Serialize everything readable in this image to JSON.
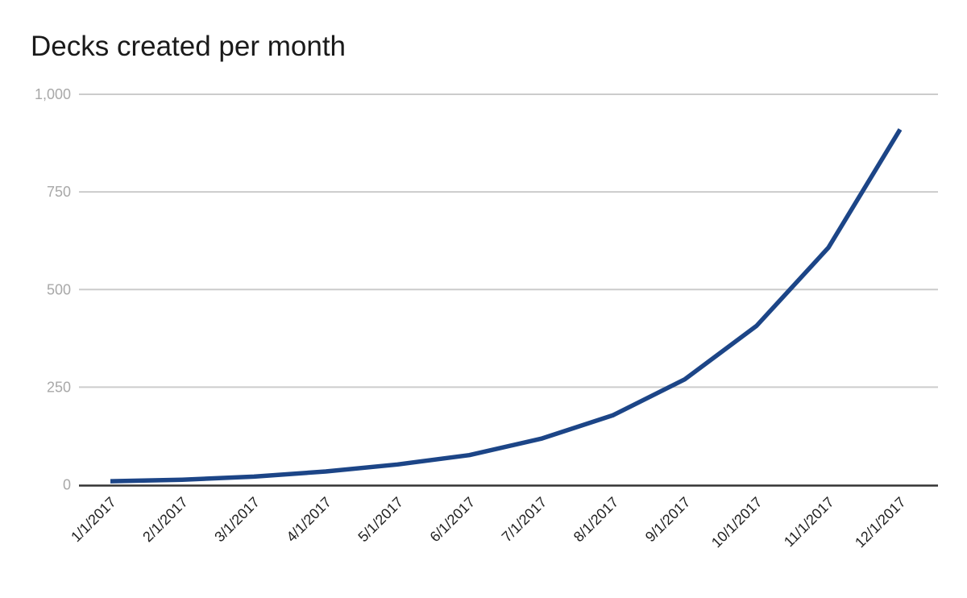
{
  "chart_data": {
    "type": "line",
    "title": "Decks created per month",
    "categories": [
      "1/1/2017",
      "2/1/2017",
      "3/1/2017",
      "4/1/2017",
      "5/1/2017",
      "6/1/2017",
      "7/1/2017",
      "8/1/2017",
      "9/1/2017",
      "10/1/2017",
      "11/1/2017",
      "12/1/2017"
    ],
    "values": [
      9,
      13,
      21,
      34,
      52,
      76,
      118,
      178,
      270,
      407,
      607,
      910
    ],
    "xlabel": "",
    "ylabel": "",
    "ylim": [
      0,
      1000
    ],
    "yticks": [
      {
        "value": 0,
        "label": "0"
      },
      {
        "value": 250,
        "label": "250"
      },
      {
        "value": 500,
        "label": "500"
      },
      {
        "value": 750,
        "label": "750"
      },
      {
        "value": 1000,
        "label": "1,000"
      }
    ],
    "grid": true,
    "legend": "none",
    "x_label_rotation": -45,
    "colors": {
      "line": "#1c4587",
      "gridline": "#cccccc",
      "axis": "#333333",
      "ytick_label": "#a8a8a8",
      "xtick_label": "#212121",
      "title": "#1a1a1a",
      "background": "#ffffff"
    }
  }
}
